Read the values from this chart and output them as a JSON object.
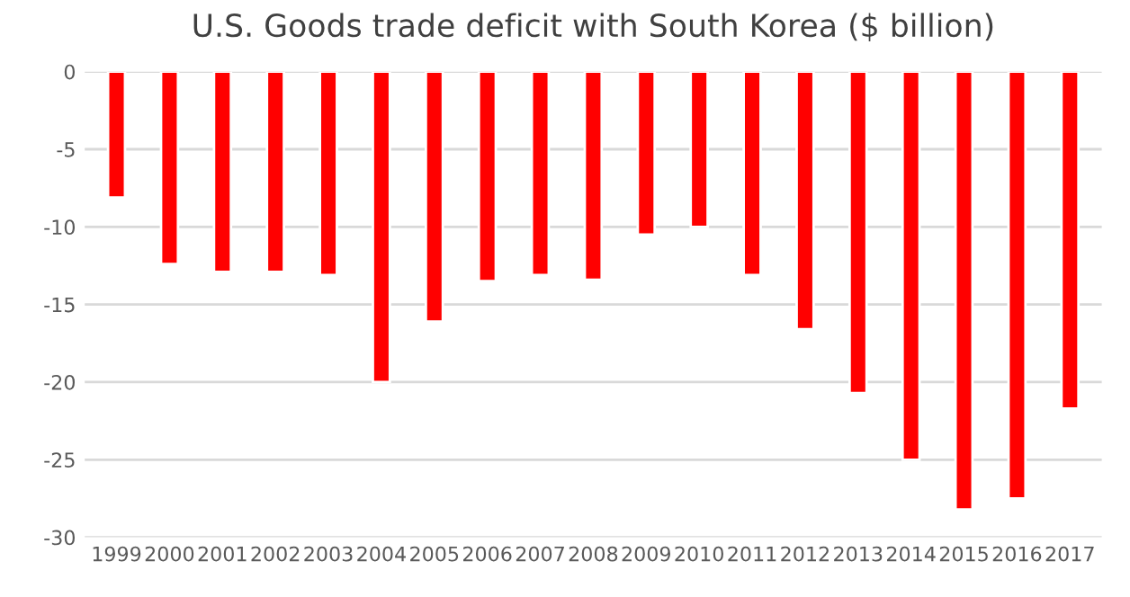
{
  "chart_data": {
    "type": "bar",
    "title": "U.S. Goods trade deficit with South Korea ($ billion)",
    "categories": [
      "1999",
      "2000",
      "2001",
      "2002",
      "2003",
      "2004",
      "2005",
      "2006",
      "2007",
      "2008",
      "2009",
      "2010",
      "2011",
      "2012",
      "2013",
      "2014",
      "2015",
      "2016",
      "2017"
    ],
    "values": [
      -8.1,
      -12.4,
      -12.9,
      -12.9,
      -13.1,
      -20.0,
      -16.1,
      -13.5,
      -13.1,
      -13.4,
      -10.5,
      -10.0,
      -13.1,
      -16.6,
      -20.7,
      -25.0,
      -28.2,
      -27.5,
      -21.7
    ],
    "color": "#ff0000",
    "ylim": [
      -30,
      0
    ],
    "yticks": [
      -30,
      -25,
      -20,
      -15,
      -10,
      -5,
      0
    ],
    "grid": "y"
  }
}
